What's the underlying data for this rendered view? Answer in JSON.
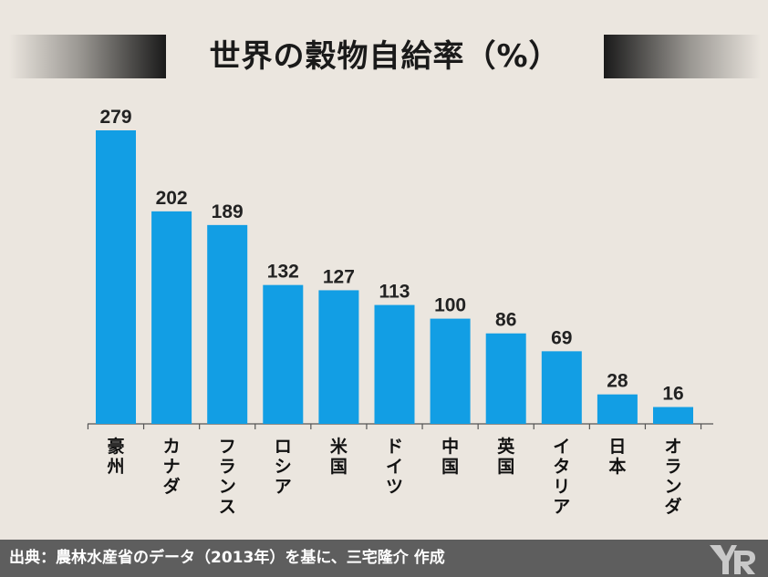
{
  "title": "世界の穀物自給率（%）",
  "footer": {
    "source": "出典：農林水産省のデータ（2013年）を基に、三宅隆介 作成"
  },
  "colors": {
    "bar": "#129ee4",
    "background": "#ebe6df",
    "footer": "#5e5e5e"
  },
  "chart_data": {
    "type": "bar",
    "title": "世界の穀物自給率（%）",
    "categories": [
      "豪州",
      "カナダ",
      "フランス",
      "ロシア",
      "米国",
      "ドイツ",
      "中国",
      "英国",
      "イタリア",
      "日本",
      "オランダ"
    ],
    "values": [
      279,
      202,
      189,
      132,
      127,
      113,
      100,
      86,
      69,
      28,
      16
    ],
    "xlabel": "",
    "ylabel": "",
    "grid": false,
    "legend": "none"
  }
}
